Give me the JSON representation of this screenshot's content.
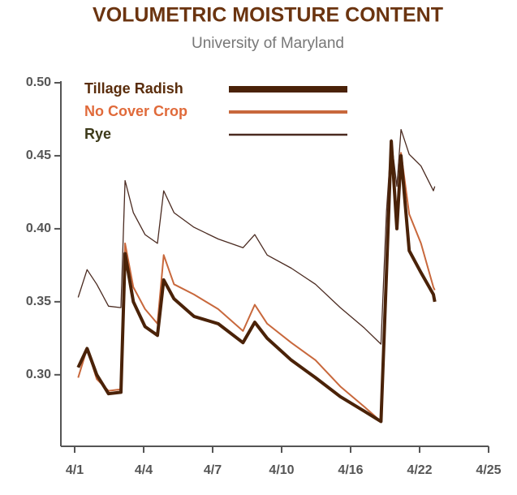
{
  "chart_data": {
    "type": "line",
    "title": "VOLUMETRIC MOISTURE CONTENT",
    "subtitle": "University of Maryland",
    "x": [
      0.05,
      0.18,
      0.32,
      0.49,
      0.67,
      0.73,
      0.85,
      1.02,
      1.2,
      1.29,
      1.44,
      1.73,
      2.08,
      2.44,
      2.61,
      2.79,
      3.14,
      3.49,
      3.85,
      4.2,
      4.44,
      4.52,
      4.59,
      4.67,
      4.73,
      4.85,
      5.02,
      5.2,
      5.22
    ],
    "xlim": [
      -0.2,
      6
    ],
    "xticks": [
      {
        "value": 0,
        "label": "4/1"
      },
      {
        "value": 1,
        "label": "4/4"
      },
      {
        "value": 2,
        "label": "4/7"
      },
      {
        "value": 3,
        "label": "4/10"
      },
      {
        "value": 4,
        "label": "4/16"
      },
      {
        "value": 5,
        "label": "4/22"
      },
      {
        "value": 6,
        "label": "4/25"
      }
    ],
    "ylim": [
      0.251,
      0.5
    ],
    "yticks": [
      {
        "value": 0.3,
        "label": "0.30"
      },
      0.35,
      {
        "value": 0.4,
        "label": "0.40"
      },
      0.45,
      {
        "value": 0.5,
        "label": "0.50"
      }
    ],
    "series": [
      {
        "name": "Tillage Radish",
        "color": "#4a2208",
        "label_color": "#5a2d0c",
        "width": 4,
        "values": [
          0.305,
          0.318,
          0.3,
          0.287,
          0.288,
          0.383,
          0.35,
          0.333,
          0.327,
          0.365,
          0.352,
          0.34,
          0.335,
          0.322,
          0.336,
          0.325,
          0.31,
          0.298,
          0.285,
          0.275,
          0.268,
          0.37,
          0.46,
          0.4,
          0.45,
          0.385,
          0.37,
          0.355,
          0.35
        ]
      },
      {
        "name": "No Cover Crop",
        "color": "#c8683c",
        "label_color": "#e06a3a",
        "width": 2,
        "values": [
          0.298,
          0.318,
          0.297,
          0.289,
          0.29,
          0.39,
          0.36,
          0.345,
          0.335,
          0.382,
          0.362,
          0.355,
          0.345,
          0.33,
          0.348,
          0.335,
          0.322,
          0.31,
          0.292,
          0.278,
          0.268,
          0.38,
          0.455,
          0.41,
          0.452,
          0.41,
          0.39,
          0.36,
          0.358
        ]
      },
      {
        "name": "Rye",
        "color": "#4a2a20",
        "label_color": "#3d3a1a",
        "width": 1.3,
        "values": [
          0.353,
          0.372,
          0.362,
          0.347,
          0.346,
          0.433,
          0.411,
          0.396,
          0.39,
          0.426,
          0.411,
          0.401,
          0.393,
          0.387,
          0.396,
          0.382,
          0.373,
          0.362,
          0.346,
          0.332,
          0.321,
          0.412,
          0.461,
          0.429,
          0.468,
          0.451,
          0.443,
          0.426,
          0.429
        ]
      }
    ]
  }
}
